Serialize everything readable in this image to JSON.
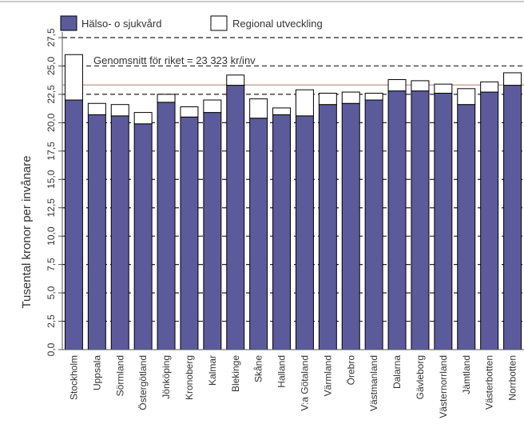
{
  "chart_data": {
    "type": "bar",
    "stacked": true,
    "ylabel": "Tusental kronor per invånare",
    "ylim": [
      0,
      27.5
    ],
    "ytick_labels": [
      "0,0",
      "2,5",
      "5,0",
      "7,5",
      "10,0",
      "12,5",
      "15,0",
      "17,5",
      "20,0",
      "22,5",
      "25,0",
      "27,5"
    ],
    "grid": "dashed horizontal",
    "legend_position": "top-left",
    "categories": [
      "Stockholm",
      "Uppsala",
      "Sörmland",
      "Östergötland",
      "Jönköping",
      "Kronoberg",
      "Kalmar",
      "Blekinge",
      "Skåne",
      "Halland",
      "V:a Götaland",
      "Värmland",
      "Örebro",
      "Västmanland",
      "Dalarna",
      "Gävleborg",
      "Västernorrland",
      "Jämtland",
      "Västerbotten",
      "Norrbotten"
    ],
    "series": [
      {
        "name": "Hälso- o sjukvård",
        "color": "#5b5b9b",
        "values": [
          22.0,
          20.7,
          20.6,
          19.9,
          21.8,
          20.5,
          20.9,
          23.3,
          20.4,
          20.7,
          20.6,
          21.6,
          21.7,
          22.0,
          22.8,
          22.8,
          22.6,
          21.6,
          22.7,
          23.3
        ]
      },
      {
        "name": "Regional utveckling",
        "color": "#ffffff",
        "values": [
          4.0,
          1.0,
          1.0,
          1.0,
          0.7,
          0.9,
          1.1,
          0.9,
          1.7,
          0.6,
          2.3,
          1.0,
          1.0,
          0.6,
          1.0,
          0.9,
          0.8,
          1.4,
          0.9,
          1.1
        ]
      }
    ],
    "annotation": {
      "text": "Genomsnitt för riket = 23 323 kr/inv",
      "value": 23.323,
      "line_color": "#c8a898"
    }
  }
}
